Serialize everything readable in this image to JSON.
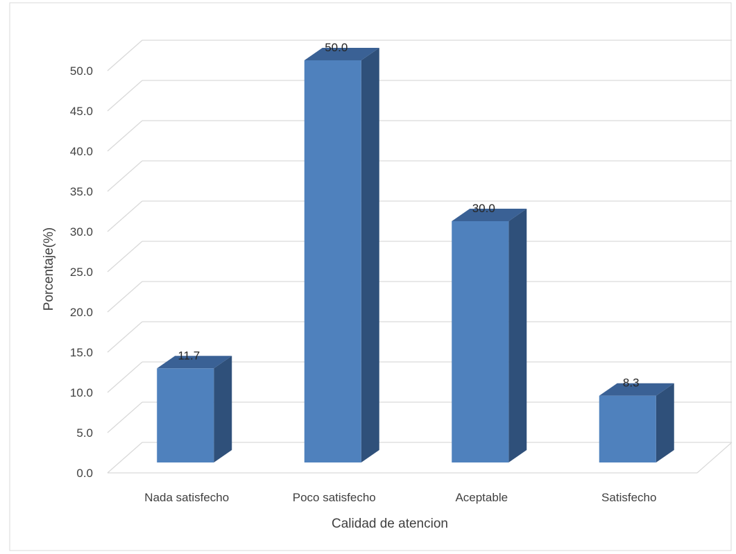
{
  "chart_data": {
    "type": "bar",
    "title": "",
    "categories": [
      "Nada satisfecho",
      "Poco satisfecho",
      "Aceptable",
      "Satisfecho"
    ],
    "values": [
      11.7,
      50.0,
      30.0,
      8.3
    ],
    "data_labels": [
      "11.7",
      "50.0",
      "30.0",
      "8.3"
    ],
    "xlabel": "Calidad de atencion",
    "ylabel": "Porcentaje(%)",
    "ylim": [
      0,
      50
    ],
    "ytick_step": 5,
    "ytick_labels": [
      "0.0",
      "5.0",
      "10.0",
      "15.0",
      "20.0",
      "25.0",
      "30.0",
      "35.0",
      "40.0",
      "45.0",
      "50.0"
    ],
    "grid": true,
    "legend": "none",
    "style": "3d-column",
    "colors": {
      "bar_front": "#4f81bd",
      "bar_side": "#2f507a",
      "bar_top": "#3a6195",
      "grid": "#d9d9d9"
    }
  }
}
